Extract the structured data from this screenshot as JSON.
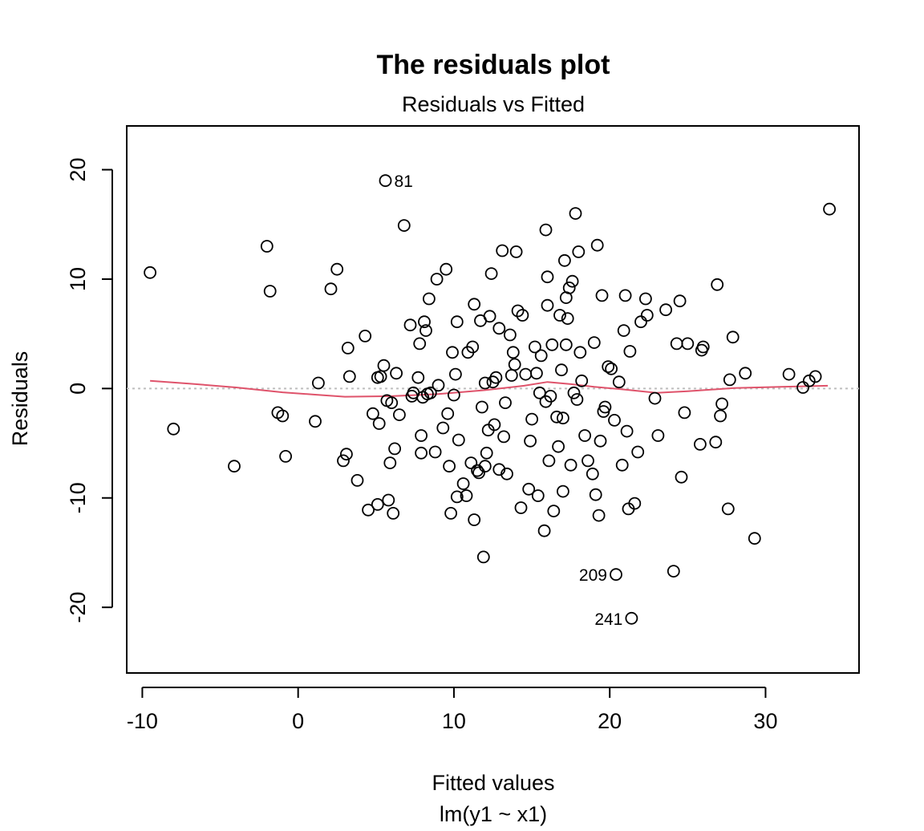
{
  "chart_data": {
    "type": "scatter",
    "title": "The residuals plot",
    "subtitle": "Residuals vs Fitted",
    "xlabel": "Fitted values",
    "xlabel_sub": "lm(y1 ~ x1)",
    "ylabel": "Residuals",
    "xlim": [
      -11,
      36
    ],
    "ylim": [
      -26,
      24
    ],
    "x_ticks": [
      -10,
      0,
      10,
      20,
      30
    ],
    "y_ticks": [
      -20,
      -10,
      0,
      10,
      20
    ],
    "grid": false,
    "reference_line": {
      "y": 0,
      "style": "dotted",
      "color": "#bebebe"
    },
    "smooth_color": "#df536b",
    "point_color": "#000000",
    "points": [
      [
        -9.5,
        10.6
      ],
      [
        -8,
        -3.7
      ],
      [
        -4.1,
        -7.1
      ],
      [
        -2,
        13
      ],
      [
        -1.8,
        8.9
      ],
      [
        -1.3,
        -2.2
      ],
      [
        -1,
        -2.5
      ],
      [
        -0.8,
        -6.2
      ],
      [
        1.1,
        -3
      ],
      [
        1.3,
        0.5
      ],
      [
        2.1,
        9.1
      ],
      [
        2.5,
        10.9
      ],
      [
        2.9,
        -6.6
      ],
      [
        3.1,
        -6
      ],
      [
        3.2,
        3.7
      ],
      [
        3.3,
        1.1
      ],
      [
        3.8,
        -8.4
      ],
      [
        4.3,
        4.8
      ],
      [
        4.5,
        -11.1
      ],
      [
        4.8,
        -2.3
      ],
      [
        5.1,
        1
      ],
      [
        5.1,
        -10.6
      ],
      [
        5.2,
        -3.2
      ],
      [
        5.3,
        1.1
      ],
      [
        5.5,
        2.1
      ],
      [
        5.6,
        19
      ],
      [
        5.7,
        -1.1
      ],
      [
        5.8,
        -10.2
      ],
      [
        5.9,
        -6.8
      ],
      [
        6.0,
        -1.3
      ],
      [
        6.1,
        -11.4
      ],
      [
        6.2,
        -5.5
      ],
      [
        6.3,
        1.4
      ],
      [
        6.5,
        -2.4
      ],
      [
        6.8,
        14.9
      ],
      [
        7.2,
        5.8
      ],
      [
        7.3,
        -0.7
      ],
      [
        7.4,
        -0.4
      ],
      [
        7.7,
        1
      ],
      [
        7.8,
        4.1
      ],
      [
        7.9,
        -4.3
      ],
      [
        7.9,
        -5.9
      ],
      [
        8.0,
        -0.8
      ],
      [
        8.1,
        6.1
      ],
      [
        8.2,
        5.3
      ],
      [
        8.3,
        -0.5
      ],
      [
        8.4,
        8.2
      ],
      [
        8.5,
        -0.4
      ],
      [
        8.8,
        -5.8
      ],
      [
        8.9,
        10
      ],
      [
        9.0,
        0.3
      ],
      [
        9.3,
        -3.6
      ],
      [
        9.5,
        10.9
      ],
      [
        9.6,
        -2.3
      ],
      [
        9.7,
        -7.1
      ],
      [
        9.8,
        -11.4
      ],
      [
        9.9,
        3.3
      ],
      [
        10.0,
        -0.6
      ],
      [
        10.1,
        1.3
      ],
      [
        10.2,
        6.1
      ],
      [
        10.2,
        -9.9
      ],
      [
        10.3,
        -4.7
      ],
      [
        10.6,
        -8.7
      ],
      [
        10.8,
        -9.8
      ],
      [
        10.9,
        3.3
      ],
      [
        11.1,
        -6.8
      ],
      [
        11.2,
        3.8
      ],
      [
        11.3,
        7.7
      ],
      [
        11.3,
        -12
      ],
      [
        11.5,
        -7.5
      ],
      [
        11.6,
        -7.7
      ],
      [
        11.7,
        6.2
      ],
      [
        11.8,
        -1.7
      ],
      [
        11.9,
        -15.4
      ],
      [
        12.0,
        0.5
      ],
      [
        12.0,
        -7.1
      ],
      [
        12.1,
        -5.9
      ],
      [
        12.2,
        -3.8
      ],
      [
        12.3,
        6.6
      ],
      [
        12.4,
        10.5
      ],
      [
        12.5,
        0.6
      ],
      [
        12.6,
        -3.3
      ],
      [
        12.7,
        1
      ],
      [
        12.9,
        -7.4
      ],
      [
        12.9,
        5.5
      ],
      [
        13.1,
        12.6
      ],
      [
        13.2,
        -4.4
      ],
      [
        13.3,
        -1.3
      ],
      [
        13.4,
        -7.8
      ],
      [
        13.6,
        4.9
      ],
      [
        13.7,
        1.2
      ],
      [
        13.8,
        3.3
      ],
      [
        13.9,
        2.2
      ],
      [
        14.0,
        12.5
      ],
      [
        14.1,
        7.1
      ],
      [
        14.3,
        -10.9
      ],
      [
        14.4,
        6.7
      ],
      [
        14.6,
        1.3
      ],
      [
        14.8,
        -9.2
      ],
      [
        14.9,
        -4.8
      ],
      [
        15.0,
        -2.8
      ],
      [
        15.2,
        3.8
      ],
      [
        15.3,
        1.4
      ],
      [
        15.4,
        -9.8
      ],
      [
        15.5,
        -0.4
      ],
      [
        15.6,
        3.0
      ],
      [
        15.8,
        -13
      ],
      [
        15.9,
        -1.2
      ],
      [
        15.9,
        14.5
      ],
      [
        16.0,
        10.2
      ],
      [
        16.0,
        7.6
      ],
      [
        16.1,
        -6.6
      ],
      [
        16.2,
        -0.7
      ],
      [
        16.3,
        4.0
      ],
      [
        16.4,
        -11.2
      ],
      [
        16.6,
        -2.6
      ],
      [
        16.7,
        -5.3
      ],
      [
        16.8,
        6.7
      ],
      [
        16.9,
        1.7
      ],
      [
        17.0,
        -9.4
      ],
      [
        17.0,
        -2.7
      ],
      [
        17.1,
        11.7
      ],
      [
        17.2,
        4
      ],
      [
        17.2,
        8.3
      ],
      [
        17.3,
        6.4
      ],
      [
        17.4,
        9.2
      ],
      [
        17.5,
        -7.0
      ],
      [
        17.6,
        9.8
      ],
      [
        17.7,
        -0.4
      ],
      [
        17.8,
        16
      ],
      [
        17.9,
        -1.0
      ],
      [
        18.0,
        12.5
      ],
      [
        18.1,
        3.3
      ],
      [
        18.2,
        0.7
      ],
      [
        18.4,
        -4.3
      ],
      [
        18.6,
        -6.6
      ],
      [
        18.9,
        -7.8
      ],
      [
        19.0,
        4.2
      ],
      [
        19.1,
        -9.7
      ],
      [
        19.2,
        13.1
      ],
      [
        19.3,
        -11.6
      ],
      [
        19.4,
        -4.8
      ],
      [
        19.5,
        8.5
      ],
      [
        19.6,
        -2.1
      ],
      [
        19.7,
        -1.7
      ],
      [
        19.9,
        2
      ],
      [
        20.1,
        1.8
      ],
      [
        20.3,
        -2.9
      ],
      [
        20.4,
        -17
      ],
      [
        20.6,
        0.6
      ],
      [
        20.8,
        -7.0
      ],
      [
        20.9,
        5.3
      ],
      [
        21.0,
        8.5
      ],
      [
        21.1,
        -3.9
      ],
      [
        21.2,
        -11
      ],
      [
        21.3,
        3.4
      ],
      [
        21.4,
        -21
      ],
      [
        21.6,
        -10.5
      ],
      [
        21.8,
        -5.8
      ],
      [
        22.0,
        6.1
      ],
      [
        22.3,
        8.2
      ],
      [
        22.4,
        6.7
      ],
      [
        22.9,
        -0.9
      ],
      [
        23.1,
        -4.3
      ],
      [
        23.6,
        7.2
      ],
      [
        24.1,
        -16.7
      ],
      [
        24.3,
        4.1
      ],
      [
        24.5,
        8
      ],
      [
        24.6,
        -8.1
      ],
      [
        24.8,
        -2.2
      ],
      [
        25.0,
        4.1
      ],
      [
        25.8,
        -5.1
      ],
      [
        25.9,
        3.5
      ],
      [
        26.0,
        3.8
      ],
      [
        26.8,
        -4.9
      ],
      [
        26.9,
        9.5
      ],
      [
        27.1,
        -2.5
      ],
      [
        27.2,
        -1.4
      ],
      [
        27.6,
        -11
      ],
      [
        27.7,
        0.8
      ],
      [
        27.9,
        4.7
      ],
      [
        28.7,
        1.4
      ],
      [
        29.3,
        -13.7
      ],
      [
        31.5,
        1.3
      ],
      [
        32.4,
        0.1
      ],
      [
        32.8,
        0.7
      ],
      [
        33.2,
        1.1
      ],
      [
        34.1,
        16.4
      ]
    ],
    "annotations": [
      {
        "label": "81",
        "x": 5.6,
        "y": 19,
        "side": "right"
      },
      {
        "label": "209",
        "x": 20.4,
        "y": -17,
        "side": "left"
      },
      {
        "label": "241",
        "x": 21.4,
        "y": -21,
        "side": "left"
      }
    ],
    "smooth_line": [
      [
        -9.5,
        0.7
      ],
      [
        -7,
        0.45
      ],
      [
        -4,
        0.1
      ],
      [
        -1,
        -0.35
      ],
      [
        1,
        -0.55
      ],
      [
        3,
        -0.75
      ],
      [
        6,
        -0.7
      ],
      [
        9,
        -0.5
      ],
      [
        12,
        -0.15
      ],
      [
        14.5,
        0.25
      ],
      [
        16,
        0.6
      ],
      [
        17.5,
        0.4
      ],
      [
        19,
        0.15
      ],
      [
        21,
        -0.1
      ],
      [
        23,
        -0.4
      ],
      [
        25,
        -0.25
      ],
      [
        28,
        0.05
      ],
      [
        31,
        0.15
      ],
      [
        34,
        0.25
      ]
    ]
  }
}
